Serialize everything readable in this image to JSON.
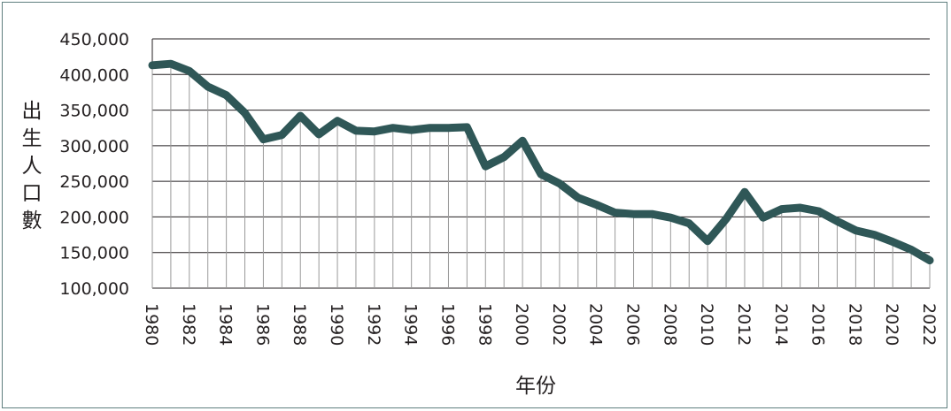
{
  "chart_data": {
    "type": "line",
    "title": "",
    "xlabel": "年份",
    "ylabel": "出生人口數",
    "ylim": [
      100000,
      450000
    ],
    "y_ticks": [
      "100,000",
      "150,000",
      "200,000",
      "250,000",
      "300,000",
      "350,000",
      "400,000",
      "450,000"
    ],
    "x_ticks": [
      "1980",
      "1982",
      "1984",
      "1986",
      "1988",
      "1990",
      "1992",
      "1994",
      "1996",
      "1998",
      "2000",
      "2002",
      "2004",
      "2006",
      "2008",
      "2010",
      "2012",
      "2014",
      "2016",
      "2018",
      "2020",
      "2022"
    ],
    "grid": "horizontal lines at y ticks; vertical drop lines under data",
    "legend": "none",
    "line_color": "#2f5757",
    "series": [
      {
        "x": [
          1980,
          1981,
          1982,
          1983,
          1984,
          1985,
          1986,
          1987,
          1988,
          1989,
          1990,
          1991,
          1992,
          1993,
          1994,
          1995,
          1996,
          1997,
          1998,
          1999,
          2000,
          2001,
          2002,
          2003,
          2004,
          2005,
          2006,
          2007,
          2008,
          2009,
          2010,
          2011,
          2012,
          2013,
          2014,
          2015,
          2016,
          2017,
          2018,
          2019,
          2020,
          2021,
          2022
        ],
        "values": [
          413000,
          415000,
          405000,
          383000,
          371000,
          346000,
          309000,
          315000,
          342000,
          316000,
          335000,
          321000,
          320000,
          325000,
          322000,
          325000,
          325000,
          326000,
          271000,
          284000,
          307000,
          260000,
          247000,
          227000,
          217000,
          206000,
          204000,
          204000,
          199000,
          191000,
          166000,
          197000,
          235000,
          199000,
          211000,
          213000,
          208000,
          194000,
          181000,
          175000,
          165000,
          154000,
          139000
        ]
      }
    ]
  }
}
